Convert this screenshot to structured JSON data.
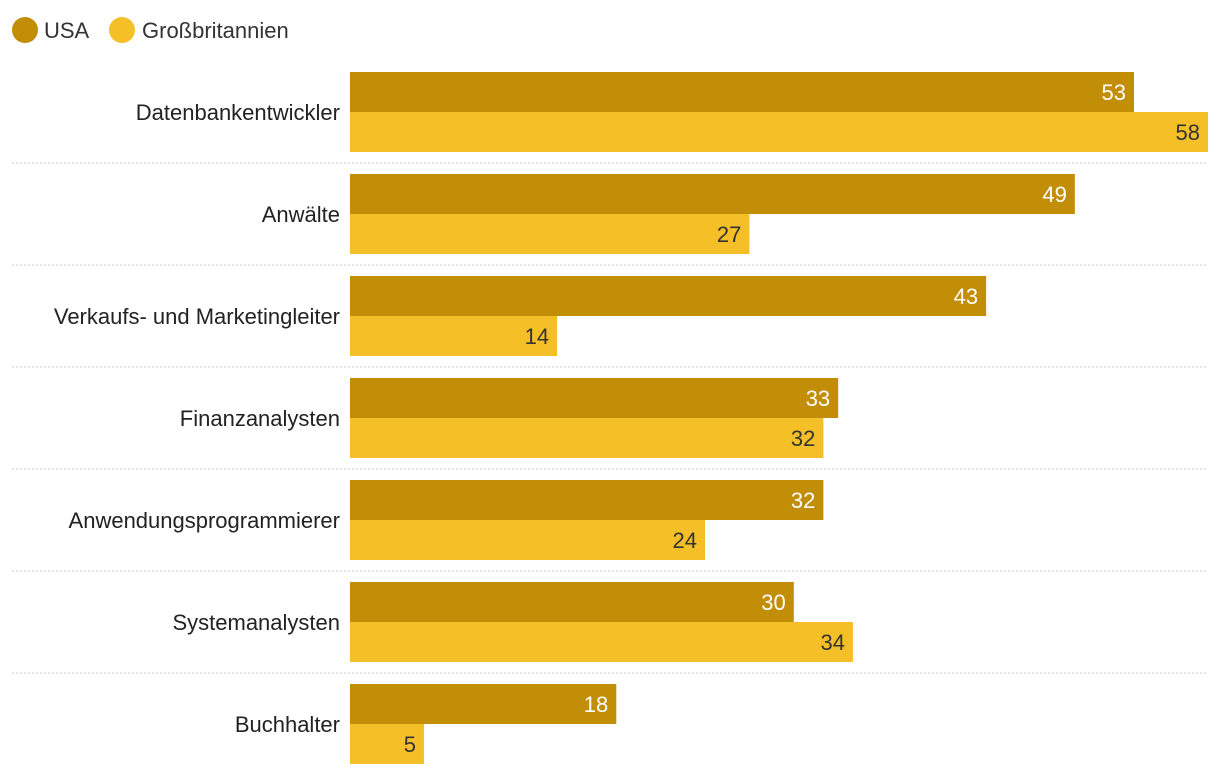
{
  "chart_data": {
    "type": "bar",
    "orientation": "horizontal",
    "title": "",
    "xlabel": "",
    "ylabel": "",
    "xlim": [
      0,
      58
    ],
    "grid": false,
    "legend_position": "top-left",
    "categories": [
      "Datenbankentwickler",
      "Anwälte",
      "Verkaufs- und Marketingleiter",
      "Finanzanalysten",
      "Anwendungsprogrammierer",
      "Systemanalysten",
      "Buchhalter"
    ],
    "series": [
      {
        "name": "USA",
        "color": "#c28e07",
        "values": [
          53,
          49,
          43,
          33,
          32,
          30,
          18
        ]
      },
      {
        "name": "Großbritannien",
        "color": "#f5c027",
        "values": [
          58,
          27,
          14,
          32,
          24,
          34,
          5
        ]
      }
    ]
  }
}
